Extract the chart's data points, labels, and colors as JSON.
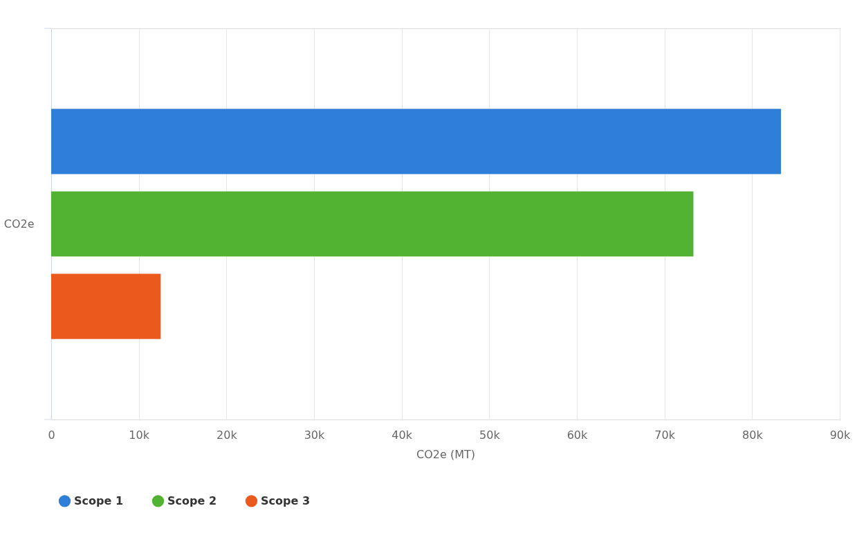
{
  "chart_data": {
    "type": "bar",
    "orientation": "horizontal",
    "categories": [
      "CO2e"
    ],
    "xlabel": "CO2e (MT)",
    "series": [
      {
        "name": "Scope 1",
        "color": "#2f7ed8",
        "values": [
          83300
        ]
      },
      {
        "name": "Scope 2",
        "color": "#52b332",
        "values": [
          73300
        ]
      },
      {
        "name": "Scope 3",
        "color": "#eb5a1c",
        "values": [
          12500
        ]
      }
    ],
    "xlim": [
      0,
      90000
    ],
    "xticks": [
      0,
      {
        "value": 10000,
        "label": "10k"
      },
      {
        "value": 20000,
        "label": "20k"
      },
      {
        "value": 30000,
        "label": "30k"
      },
      {
        "value": 40000,
        "label": "40k"
      },
      {
        "value": 50000,
        "label": "50k"
      },
      {
        "value": 60000,
        "label": "60k"
      },
      {
        "value": 70000,
        "label": "70k"
      },
      {
        "value": 80000,
        "label": "80k"
      },
      {
        "value": 90000,
        "label": "90k"
      }
    ],
    "grid": "x",
    "legend": "bottom"
  }
}
